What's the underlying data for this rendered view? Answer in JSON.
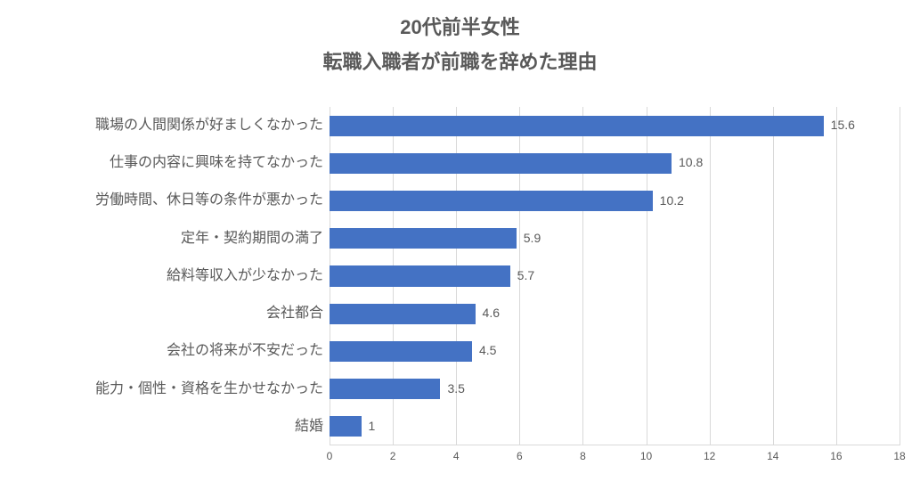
{
  "chart": {
    "type": "horizontal_bar",
    "title_line1": "20代前半女性",
    "title_line2": "転職入職者が前職を辞めた理由",
    "title_fontsize": 22,
    "title_color": "#595959",
    "background_color": "#ffffff",
    "bar_color": "#4472c4",
    "grid_color": "#d9d9d9",
    "text_color": "#595959",
    "label_fontsize": 16,
    "value_fontsize": 14,
    "tick_fontsize": 12,
    "xlim": [
      0,
      18
    ],
    "xtick_step": 2,
    "xticks": [
      0,
      2,
      4,
      6,
      8,
      10,
      12,
      14,
      16,
      18
    ],
    "bar_height_ratio": 0.55,
    "categories": [
      "職場の人間関係が好ましくなかった",
      "仕事の内容に興味を持てなかった",
      "労働時間、休日等の条件が悪かった",
      "定年・契約期間の満了",
      "給料等収入が少なかった",
      "会社都合",
      "会社の将来が不安だった",
      "能力・個性・資格を生かせなかった",
      "結婚"
    ],
    "values": [
      15.6,
      10.8,
      10.2,
      5.9,
      5.7,
      4.6,
      4.5,
      3.5,
      1
    ]
  }
}
